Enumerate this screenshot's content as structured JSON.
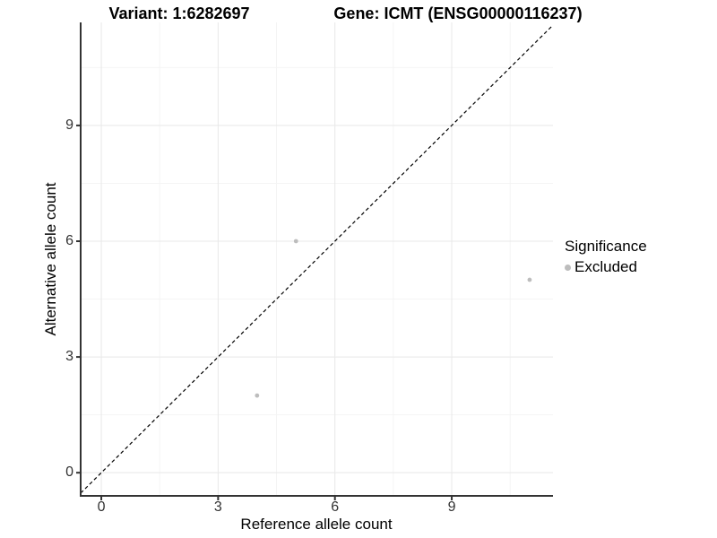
{
  "chart_data": {
    "type": "scatter",
    "title_left": "Variant: 1:6282697",
    "title_right": "Gene: ICMT (ENSG00000116237)",
    "xlabel": "Reference allele count",
    "ylabel": "Alternative allele count",
    "x_ticks": [
      0,
      3,
      6,
      9
    ],
    "y_ticks": [
      0,
      3,
      6,
      9
    ],
    "minor_x": [
      1.5,
      4.5,
      7.5,
      10.5
    ],
    "minor_y": [
      1.5,
      4.5,
      7.5,
      10.5
    ],
    "xlim": [
      -0.53,
      11.6
    ],
    "ylim": [
      -0.6,
      11.67
    ],
    "grid": "major and minor gridlines on white background",
    "series": [
      {
        "name": "Excluded",
        "color": "#bdbdbd",
        "points": [
          {
            "x": 4,
            "y": 2
          },
          {
            "x": 5,
            "y": 6
          },
          {
            "x": 11,
            "y": 5
          }
        ]
      }
    ],
    "reference_line": {
      "type": "identity y=x",
      "style": "dashed",
      "color": "#000000"
    },
    "legend": {
      "title": "Significance",
      "position": "right",
      "entries": [
        {
          "label": "Excluded",
          "color": "#bdbdbd"
        }
      ]
    },
    "colors": {
      "point": "#bdbdbd",
      "grid_major": "#e8e8e8",
      "grid_minor": "#f4f4f4",
      "axis_line": "#333333",
      "tick_text": "#333333",
      "reference_line": "#000000"
    }
  }
}
